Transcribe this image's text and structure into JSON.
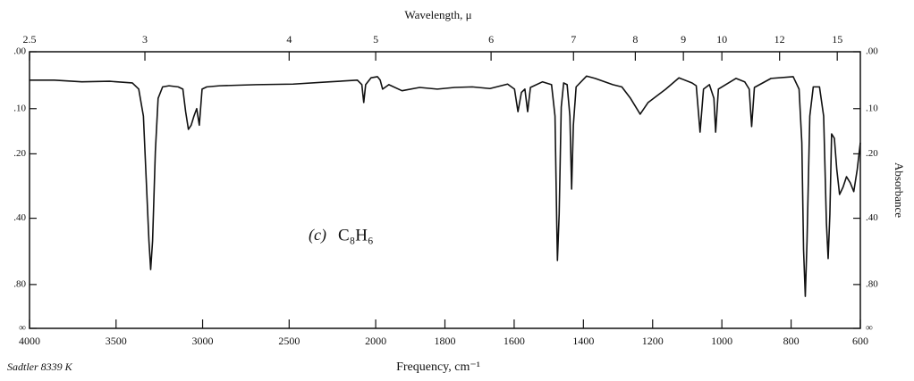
{
  "chart_data": {
    "type": "line",
    "x_title": "Frequency, cm⁻¹",
    "x2_title": "Wavelength, μ",
    "y_title": "Absorbance",
    "panel_label": "(c)",
    "formula": "C₈H₆",
    "source": "Sadtler 8339 K",
    "color": "#111111",
    "xlim": [
      4000,
      600
    ],
    "xscale": "two-scale",
    "xscale_break": 2000,
    "xscale_factor": 2,
    "xticks": [
      4000,
      3500,
      3000,
      2500,
      2000,
      1800,
      1600,
      1400,
      1200,
      1000,
      800,
      600
    ],
    "x2ticks": [
      2.5,
      3,
      4,
      5,
      6,
      7,
      8,
      9,
      10,
      12,
      15
    ],
    "yscale": "transmittance",
    "ylim": [
      0,
      "Infinity"
    ],
    "yticks": [
      {
        "value": 0,
        "label": ".00"
      },
      {
        "value": 0.1,
        "label": ".10"
      },
      {
        "value": 0.2,
        "label": ".20"
      },
      {
        "value": 0.4,
        "label": ".40"
      },
      {
        "value": 0.8,
        "label": ".80"
      },
      {
        "value": "Infinity",
        "label": "∞"
      }
    ],
    "x": [
      4000,
      3857,
      3698,
      3538,
      3406,
      3369,
      3342,
      3326,
      3310,
      3300,
      3289,
      3273,
      3257,
      3231,
      3194,
      3141,
      3114,
      3098,
      3082,
      3066,
      3050,
      3034,
      3019,
      3003,
      2976,
      2902,
      2690,
      2477,
      2265,
      2106,
      2080,
      2069,
      2058,
      2027,
      1995,
      1987,
      1980,
      1962,
      1924,
      1873,
      1822,
      1772,
      1721,
      1670,
      1619,
      1599,
      1589,
      1579,
      1569,
      1561,
      1553,
      1518,
      1492,
      1482,
      1477,
      1475,
      1470,
      1464,
      1457,
      1447,
      1439,
      1434,
      1429,
      1421,
      1391,
      1366,
      1315,
      1289,
      1264,
      1236,
      1213,
      1162,
      1124,
      1086,
      1074,
      1063,
      1053,
      1036,
      1023,
      1018,
      1010,
      959,
      934,
      921,
      914,
      906,
      858,
      794,
      777,
      769,
      764,
      759,
      754,
      746,
      736,
      718,
      706,
      698,
      693,
      688,
      683,
      675,
      668,
      660,
      650,
      640,
      629,
      619,
      609,
      600
    ],
    "values": [
      0.047,
      0.047,
      0.05,
      0.049,
      0.052,
      0.063,
      0.115,
      0.266,
      0.5,
      0.672,
      0.5,
      0.195,
      0.08,
      0.059,
      0.057,
      0.059,
      0.063,
      0.106,
      0.143,
      0.134,
      0.115,
      0.1,
      0.134,
      0.063,
      0.059,
      0.057,
      0.055,
      0.054,
      0.05,
      0.047,
      0.055,
      0.088,
      0.055,
      0.043,
      0.041,
      0.047,
      0.063,
      0.055,
      0.066,
      0.06,
      0.063,
      0.06,
      0.059,
      0.062,
      0.054,
      0.063,
      0.106,
      0.069,
      0.063,
      0.106,
      0.06,
      0.05,
      0.055,
      0.115,
      0.419,
      0.61,
      0.384,
      0.097,
      0.052,
      0.055,
      0.115,
      0.298,
      0.134,
      0.059,
      0.04,
      0.044,
      0.055,
      0.059,
      0.08,
      0.111,
      0.088,
      0.063,
      0.043,
      0.052,
      0.057,
      0.149,
      0.063,
      0.055,
      0.08,
      0.149,
      0.063,
      0.044,
      0.05,
      0.063,
      0.137,
      0.06,
      0.044,
      0.041,
      0.063,
      0.173,
      0.547,
      0.936,
      0.5,
      0.115,
      0.059,
      0.059,
      0.115,
      0.419,
      0.598,
      0.384,
      0.153,
      0.163,
      0.241,
      0.315,
      0.292,
      0.261,
      0.279,
      0.306,
      0.241,
      0.173
    ]
  }
}
